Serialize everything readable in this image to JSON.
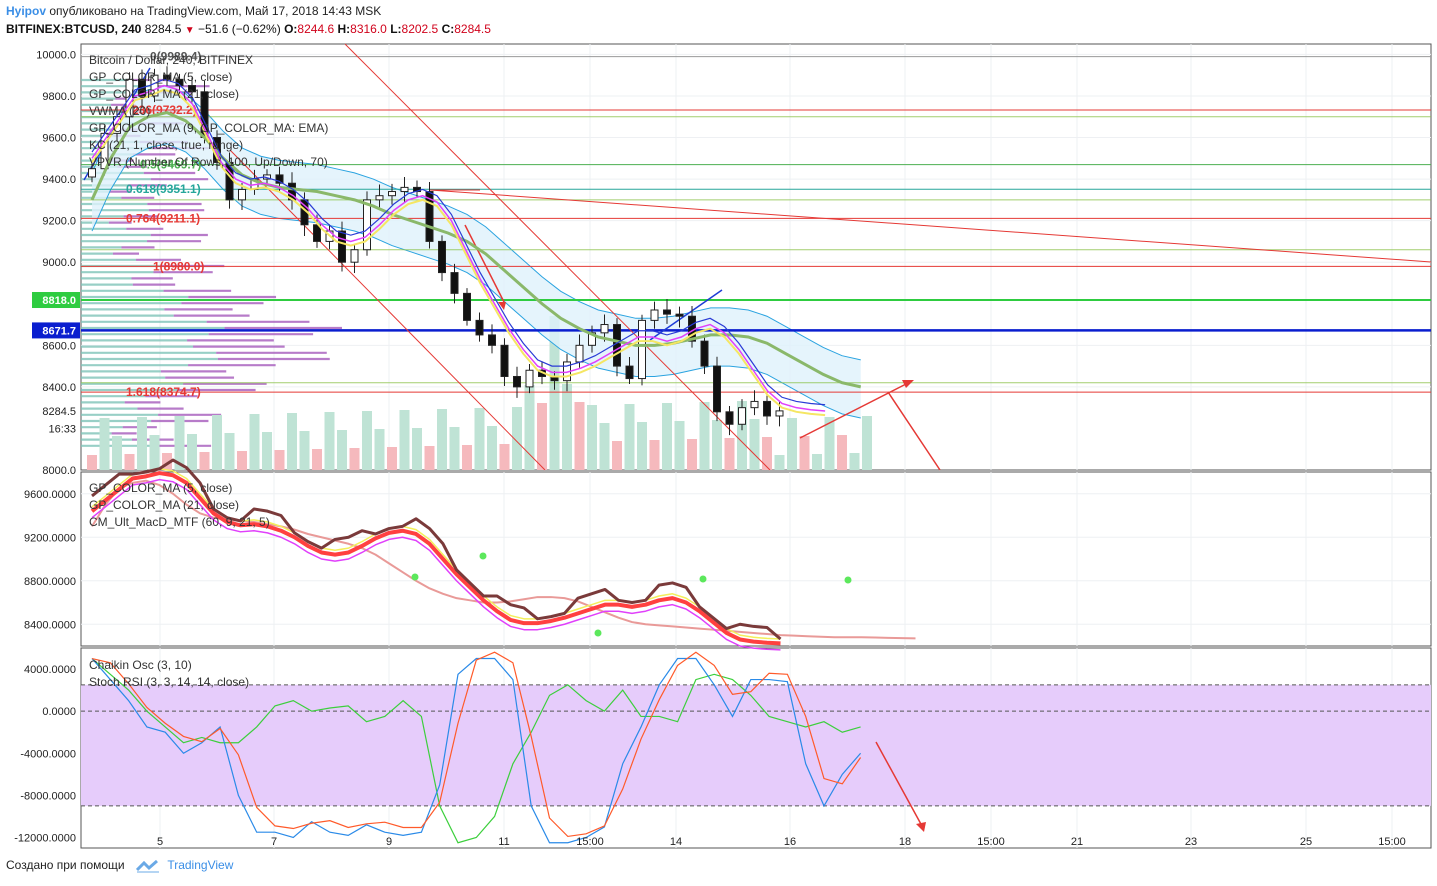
{
  "header": {
    "author": "Hyipov",
    "published_text": "опубликовано на TradingView.com, Май 17, 2018 14:43 MSK",
    "symbol_line": "BITFINEX:BTCUSD, 240",
    "last": "8284.5",
    "change": "−51.6 (−0.62%)",
    "o_label": "O:",
    "o_val": "8244.6",
    "h_label": "H:",
    "h_val": "8316.0",
    "l_label": "L:",
    "l_val": "8202.5",
    "c_label": "C:",
    "c_val": "8284.5"
  },
  "main_pane": {
    "legend": [
      "Bitcoin / Dollar, 240, BITFINEX",
      "GP_COLOR_MA (5, close)",
      "GP_COLOR_MA (21, close)",
      "VWMA (20)",
      "GP_COLOR_MA (9, GP_COLOR_MA: EMA)",
      "KC (21, 1, close, true, range)",
      "VPVR (Number Of Rows, 100, Up/Down, 70)"
    ],
    "y_ticks": [
      "10000.0",
      "9800.0",
      "9600.0",
      "9400.0",
      "9200.0",
      "9000.0",
      "8600.0",
      "8400.0",
      "8000.0"
    ],
    "price_tags": [
      {
        "label": "8818.0",
        "value": 8818,
        "color": "#2ecc40"
      },
      {
        "label": "8671.7",
        "value": 8671.7,
        "color": "#0a1ecf"
      },
      {
        "label": "8284.5",
        "value": 8284.5,
        "color": "#ffffff"
      },
      {
        "label": "16:33",
        "value": 8200,
        "color": "#ffffff"
      }
    ],
    "fib_labels": [
      {
        "text": "0(9989.4)",
        "value": 9989.4,
        "color": "#ffffff"
      },
      {
        "text": "0.236(9732.2)",
        "value": 9732.2,
        "color": "#e53935"
      },
      {
        "text": "0.5(9469.7)",
        "value": 9469.7,
        "color": "#4caf50"
      },
      {
        "text": "0.618(9351.1)",
        "value": 9351.1,
        "color": "#26a69a"
      },
      {
        "text": "0.764(9211.1)",
        "value": 9211.1,
        "color": "#e53935"
      },
      {
        "text": "1(8980.0)",
        "value": 8980,
        "color": "#e53935"
      },
      {
        "text": "1.618(8374.7)",
        "value": 8374.7,
        "color": "#e53935"
      }
    ]
  },
  "pane2": {
    "legend": [
      "GP_COLOR_MA (5, close)",
      "GP_COLOR_MA (21, close)",
      "CM_Ult_MacD_MTF (60, 9, 21, 5)"
    ],
    "y_ticks": [
      "9600.0000",
      "9200.0000",
      "8800.0000",
      "8400.0000"
    ]
  },
  "pane3": {
    "legend": [
      "Chaikin Osc (3, 10)",
      "Stoch RSI (3, 3, 14, 14, close)"
    ],
    "y_ticks": [
      "4000.0000",
      "0.0000",
      "-4000.0000",
      "-8000.0000",
      "-12000.0000"
    ]
  },
  "x_ticks": [
    "5",
    "7",
    "9",
    "11",
    "15:00",
    "14",
    "16",
    "18",
    "15:00",
    "21",
    "23",
    "25",
    "15:00"
  ],
  "footer": {
    "created_with": "Создано при помощи",
    "brand": "TradingView"
  },
  "chart_data": {
    "type": "candlestick",
    "symbol": "BITFINEX:BTCUSD",
    "timeframe": "240",
    "ohlc_last": {
      "open": 8244.6,
      "high": 8316.0,
      "low": 8202.5,
      "close": 8284.5
    },
    "y_range": [
      8000,
      10050
    ],
    "closes": [
      9450,
      9620,
      9700,
      9880,
      9800,
      9900,
      9880,
      9850,
      9820,
      9600,
      9480,
      9300,
      9350,
      9400,
      9420,
      9380,
      9300,
      9180,
      9100,
      9150,
      9000,
      9060,
      9300,
      9320,
      9340,
      9360,
      9340,
      9100,
      8950,
      8850,
      8720,
      8650,
      8600,
      8450,
      8400,
      8480,
      8450,
      8430,
      8520,
      8600,
      8660,
      8700,
      8500,
      8440,
      8720,
      8770,
      8750,
      8740,
      8620,
      8500,
      8280,
      8220,
      8300,
      8330,
      8260,
      8284.5
    ],
    "fibonacci": [
      {
        "level": 0,
        "price": 9989.4
      },
      {
        "level": 0.236,
        "price": 9732.2
      },
      {
        "level": 0.5,
        "price": 9469.7
      },
      {
        "level": 0.618,
        "price": 9351.1
      },
      {
        "level": 0.764,
        "price": 9211.1
      },
      {
        "level": 1,
        "price": 8980.0
      },
      {
        "level": 1.618,
        "price": 8374.7
      }
    ],
    "horizontal_levels": [
      8818.0,
      8671.7
    ],
    "ma5": [
      9500,
      9600,
      9700,
      9800,
      9820,
      9850,
      9830,
      9760,
      9620,
      9480,
      9400,
      9370,
      9380,
      9360,
      9320,
      9260,
      9180,
      9120,
      9100,
      9120,
      9180,
      9250,
      9300,
      9320,
      9290,
      9200,
      9060,
      8920,
      8800,
      8680,
      8580,
      8500,
      8470,
      8470,
      8490,
      8520,
      8560,
      8600,
      8640,
      8640,
      8620,
      8640,
      8680,
      8700,
      8660,
      8580,
      8480,
      8380,
      8320,
      8300,
      8290,
      8284
    ],
    "ma21": [
      9300,
      9500,
      9650,
      9700,
      9720,
      9680,
      9600,
      9500,
      9420,
      9380,
      9360,
      9350,
      9340,
      9320,
      9300,
      9270,
      9230,
      9200,
      9170,
      9140,
      9100,
      9040,
      8960,
      8880,
      8800,
      8730,
      8680,
      8640,
      8620,
      8600,
      8600,
      8610,
      8630,
      8650,
      8650,
      8640,
      8610,
      8560,
      8510,
      8460,
      8420,
      8400
    ]
  }
}
